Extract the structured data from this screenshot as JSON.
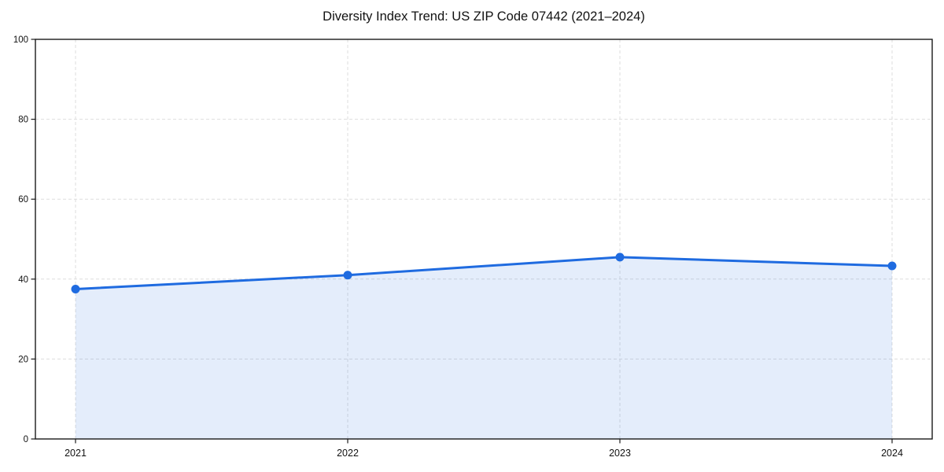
{
  "chart_data": {
    "type": "line",
    "title": "Diversity Index Trend: US ZIP Code 07442 (2021–2024)",
    "x": [
      "2021",
      "2022",
      "2023",
      "2024"
    ],
    "series": [
      {
        "name": "Diversity Index",
        "values": [
          37.5,
          41.0,
          45.5,
          43.3
        ]
      }
    ],
    "ylim": [
      0,
      100
    ],
    "yticks": [
      0,
      20,
      40,
      60,
      80,
      100
    ],
    "xlabel": "",
    "ylabel": "",
    "grid": true,
    "grid_style": "dashed",
    "area_fill": true,
    "legend_position": "none",
    "colors": {
      "line": "#1f6be0",
      "marker": "#1f6be0",
      "area": "rgba(31,107,224,0.12)",
      "grid": "#dddddd",
      "axis": "#1a1a1a",
      "tick_text": "#111111",
      "background": "#ffffff"
    }
  }
}
